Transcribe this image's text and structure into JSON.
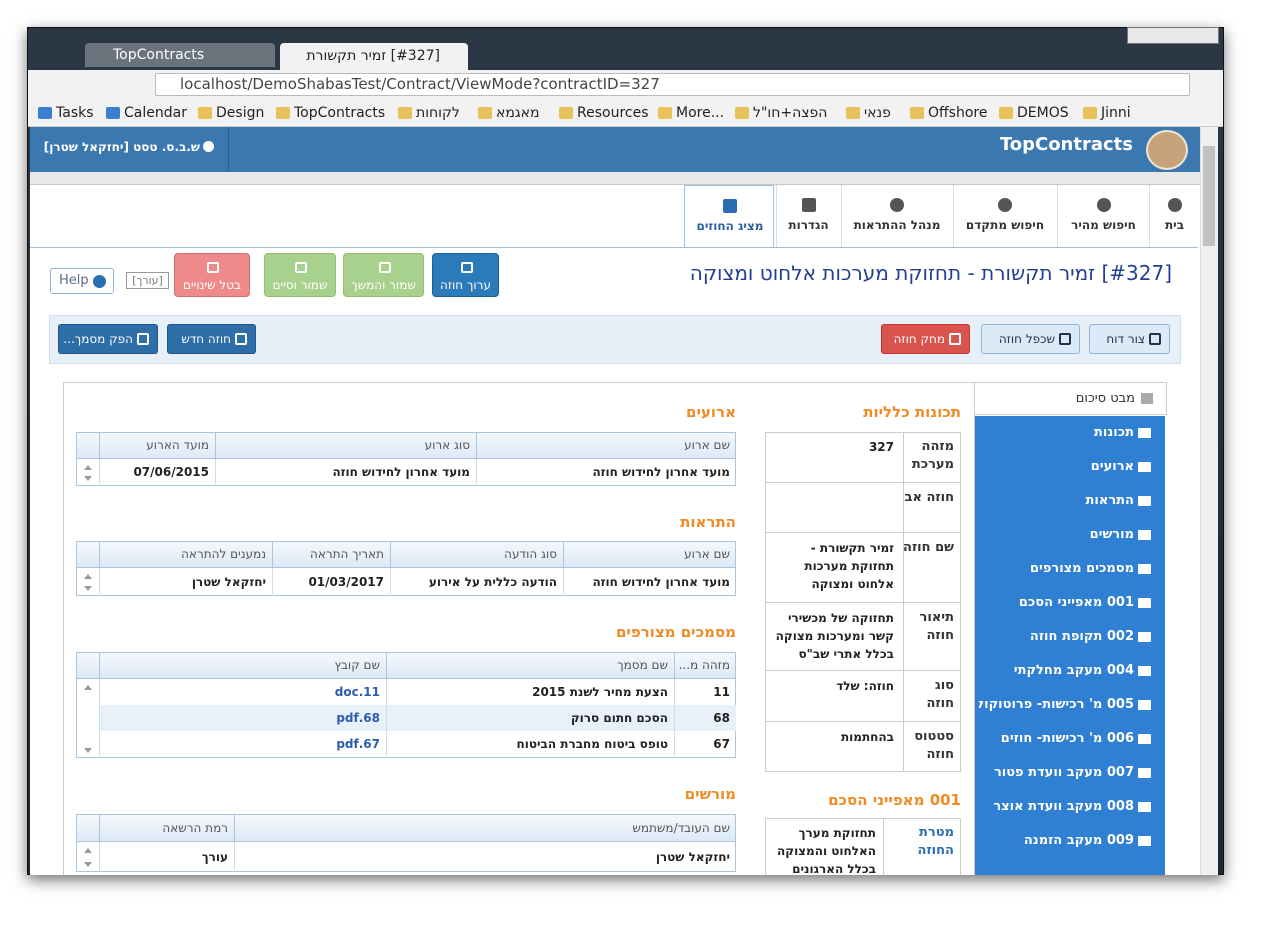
{
  "browser": {
    "tabs": [
      "TopContracts",
      "[#327] זמיר תקשורת"
    ],
    "url": "localhost/DemoShabasTest/Contract/ViewMode?contractID=327",
    "bookmarks": [
      "Tasks",
      "Calendar",
      "Design",
      "TopContracts",
      "לקוחות",
      "מאגמא",
      "Resources",
      "More...",
      "הפצה+חו\"ל",
      "פנאי",
      "Offshore",
      "DEMOS",
      "Jinni"
    ]
  },
  "header": {
    "brand": "TopContracts",
    "user": "ש.ב.ס. טסט [יחזקאל שטרן]"
  },
  "nav": [
    "בית",
    "חיפוש מהיר",
    "חיפוש מתקדם",
    "מנהל ההתראות",
    "הגדרות",
    "מציג החוזים"
  ],
  "toolbar": {
    "title": "[#327] זמיר תקשורת - תחזוקת מערכות אלחוט ומצוקה",
    "buttons": [
      "ערוך חוזה",
      "שמור והמשך",
      "שמור וסיים",
      "בטל שינויים"
    ],
    "role": "[עורך]",
    "help": "Help"
  },
  "actions": {
    "right": [
      "צור דוח",
      "שכפל חוזה",
      "מחק חוזה"
    ],
    "left": [
      "חוזה חדש",
      "הפק מסמך..."
    ]
  },
  "sidebar": {
    "tab": "מבט סיכום",
    "items": [
      "תכונות",
      "ארועים",
      "התראות",
      "מורשים",
      "מסמכים מצורפים",
      "001 מאפייני הסכם",
      "002 תקופת חוזה",
      "004 מעקב מחלקתי",
      "005 מ' רכישות- פרוטוקול",
      "006 מ' רכישות- חוזים",
      "007 מעקב וועדת פטור",
      "008 מעקב וועדת אוצר",
      "009 מעקב הזמנה"
    ]
  },
  "properties": {
    "title": "תכונות כלליות",
    "rows": [
      {
        "label": "מזהה מערכת",
        "value": "327"
      },
      {
        "label": "חוזה אב"
      },
      {
        "label": "שם חוזה",
        "value": "זמיר תקשורת - תחזוקת מערכות אלחוט ומצוקה"
      },
      {
        "label": "תיאור חוזה",
        "value": "תחזוקה של מכשירי קשר ומערכות מצוקה בכלל אתרי שב\"ס"
      },
      {
        "label": "סוג חוזה",
        "value": "חוזה: שלד"
      },
      {
        "label": "סטטוס חוזה",
        "value": "בהחתמות"
      }
    ]
  },
  "agreement": {
    "title": "001 מאפייני הסכם",
    "rows": [
      {
        "label": "מטרת החוזה",
        "value": "תחזוקת מערך האלחוט והמצוקה בכלל הארגונים"
      }
    ]
  },
  "events": {
    "title": "ארועים",
    "columns": [
      "שם ארוע",
      "סוג ארוע",
      "מועד הארוע"
    ],
    "rows": [
      [
        "מועד אחרון לחידוש חוזה",
        "מועד אחרון לחידוש חוזה",
        "07/06/2015"
      ]
    ]
  },
  "alerts": {
    "title": "התראות",
    "columns": [
      "שם ארוע",
      "סוג הודעה",
      "תאריך התראה",
      "נמענים להתראה"
    ],
    "rows": [
      [
        "מועד אחרון לחידוש חוזה",
        "הודעה כללית על אירוע",
        "01/03/2017",
        "יחזקאל שטרן"
      ]
    ]
  },
  "documents": {
    "title": "מסמכים מצורפים",
    "columns": [
      "מזהה מ...",
      "שם מסמך",
      "שם קובץ"
    ],
    "rows": [
      [
        "11",
        "הצעת מחיר לשנת 2015",
        "11.doc"
      ],
      [
        "68",
        "הסכם חתום סרוק",
        "68.pdf"
      ],
      [
        "67",
        "טופס ביטוח מחברת הביטוח",
        "67.pdf"
      ]
    ]
  },
  "owners": {
    "title": "מורשים",
    "columns": [
      "שם העובד/משתמש",
      "רמת הרשאה"
    ],
    "rows": [
      [
        "יחזקאל שטרן",
        "עורך"
      ]
    ]
  }
}
